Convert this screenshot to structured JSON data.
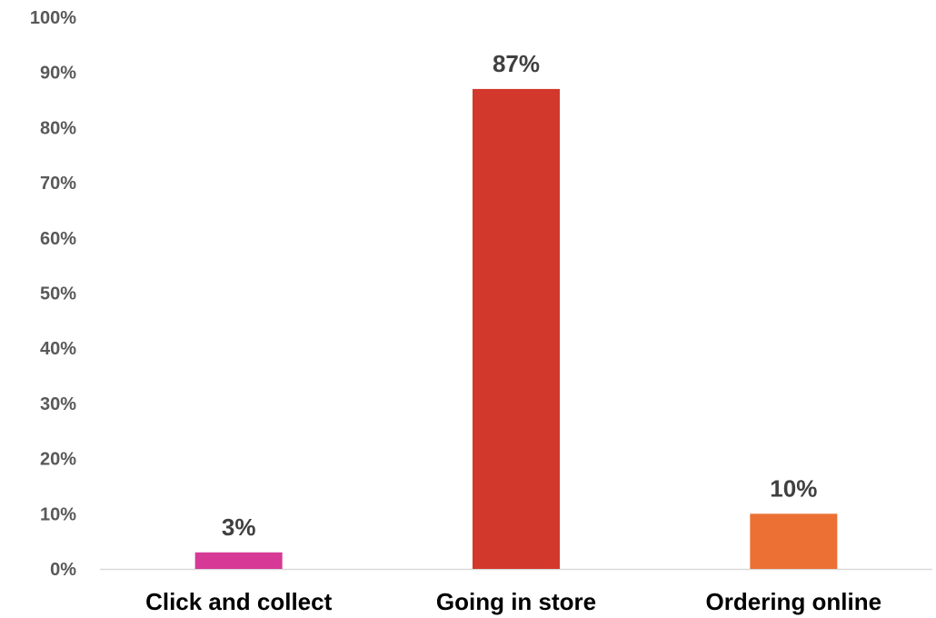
{
  "chart_data": {
    "type": "bar",
    "categories": [
      "Click and collect",
      "Going in store",
      "Ordering online"
    ],
    "values": [
      3,
      87,
      10
    ],
    "data_labels": [
      "3%",
      "87%",
      "10%"
    ],
    "colors": [
      "#d63a96",
      "#d2382b",
      "#ec7033"
    ],
    "ylim": [
      0,
      100
    ],
    "yticks": [
      0,
      10,
      20,
      30,
      40,
      50,
      60,
      70,
      80,
      90,
      100
    ],
    "ytick_labels": [
      "0%",
      "10%",
      "20%",
      "30%",
      "40%",
      "50%",
      "60%",
      "70%",
      "80%",
      "90%",
      "100%"
    ],
    "grid": false,
    "baseline_color": "#d9d9d9"
  }
}
